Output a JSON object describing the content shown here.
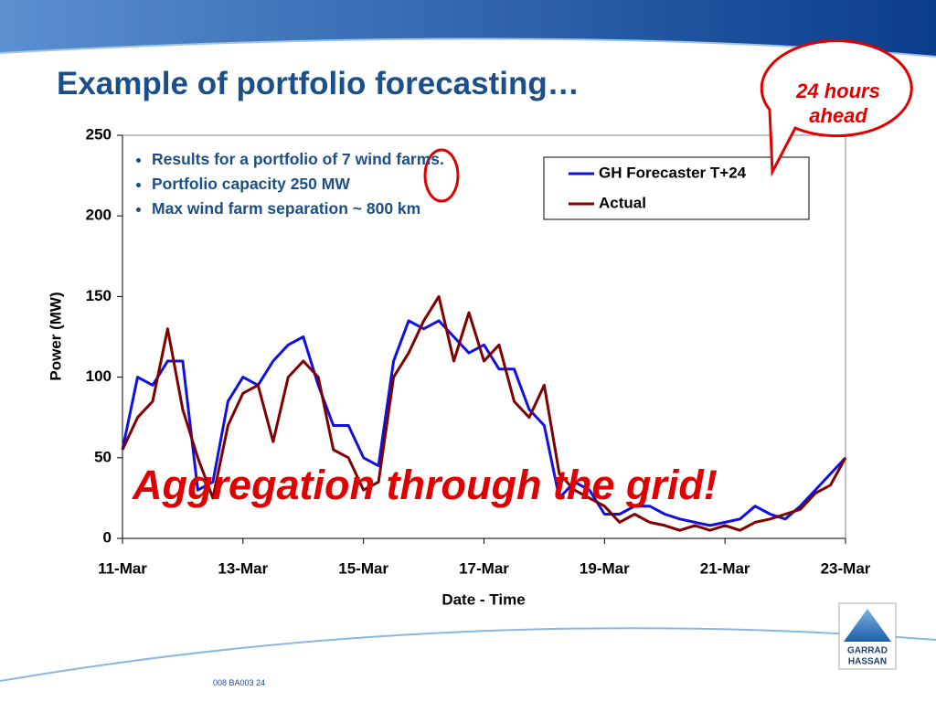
{
  "slide": {
    "title": "Example of portfolio forecasting…",
    "callout": "24 hours ahead",
    "bullets": [
      "Results for a portfolio of 7 wind farms.",
      "Portfolio capacity 250 MW",
      "Max wind farm separation ~ 800 km"
    ],
    "overlay": "Aggregation through the grid!",
    "footer": "008 BA003  24",
    "logo": [
      "GARRAD",
      "HASSAN"
    ]
  },
  "chart_data": {
    "type": "line",
    "xlabel": "Date - Time",
    "ylabel": "Power (MW)",
    "x": [
      11,
      11.25,
      11.5,
      11.75,
      12,
      12.25,
      12.5,
      12.75,
      13,
      13.25,
      13.5,
      13.75,
      14,
      14.25,
      14.5,
      14.75,
      15,
      15.25,
      15.5,
      15.75,
      16,
      16.25,
      16.5,
      16.75,
      17,
      17.25,
      17.5,
      17.75,
      18,
      18.25,
      18.5,
      18.75,
      19,
      19.25,
      19.5,
      19.75,
      20,
      20.25,
      20.5,
      20.75,
      21,
      21.25,
      21.5,
      21.75,
      22,
      22.25,
      22.5,
      22.75,
      23
    ],
    "series": [
      {
        "name": "GH Forecaster T+24",
        "color": "#1010e0",
        "values": [
          55,
          100,
          95,
          110,
          110,
          30,
          35,
          85,
          100,
          95,
          110,
          120,
          125,
          95,
          70,
          70,
          50,
          45,
          110,
          135,
          130,
          135,
          125,
          115,
          120,
          105,
          105,
          80,
          70,
          25,
          35,
          30,
          15,
          15,
          20,
          20,
          15,
          12,
          10,
          8,
          10,
          12,
          20,
          15,
          12,
          20,
          30,
          40,
          50
        ]
      },
      {
        "name": "Actual",
        "color": "#800000",
        "values": [
          55,
          75,
          85,
          130,
          80,
          50,
          25,
          70,
          90,
          95,
          60,
          100,
          110,
          100,
          55,
          50,
          30,
          35,
          100,
          115,
          135,
          150,
          110,
          140,
          110,
          120,
          85,
          75,
          95,
          40,
          30,
          25,
          20,
          10,
          15,
          10,
          8,
          5,
          8,
          5,
          8,
          5,
          10,
          12,
          15,
          18,
          28,
          33,
          50
        ]
      }
    ],
    "xlim": [
      11,
      23
    ],
    "xticks": [
      {
        "value": 11,
        "label": "11-Mar"
      },
      {
        "value": 13,
        "label": "13-Mar"
      },
      {
        "value": 15,
        "label": "15-Mar"
      },
      {
        "value": 17,
        "label": "17-Mar"
      },
      {
        "value": 19,
        "label": "19-Mar"
      },
      {
        "value": 21,
        "label": "21-Mar"
      },
      {
        "value": 23,
        "label": "23-Mar"
      }
    ],
    "ylim": [
      0,
      250
    ],
    "yticks": [
      0,
      50,
      100,
      150,
      200,
      250
    ],
    "grid": false,
    "legend": "upper right"
  }
}
